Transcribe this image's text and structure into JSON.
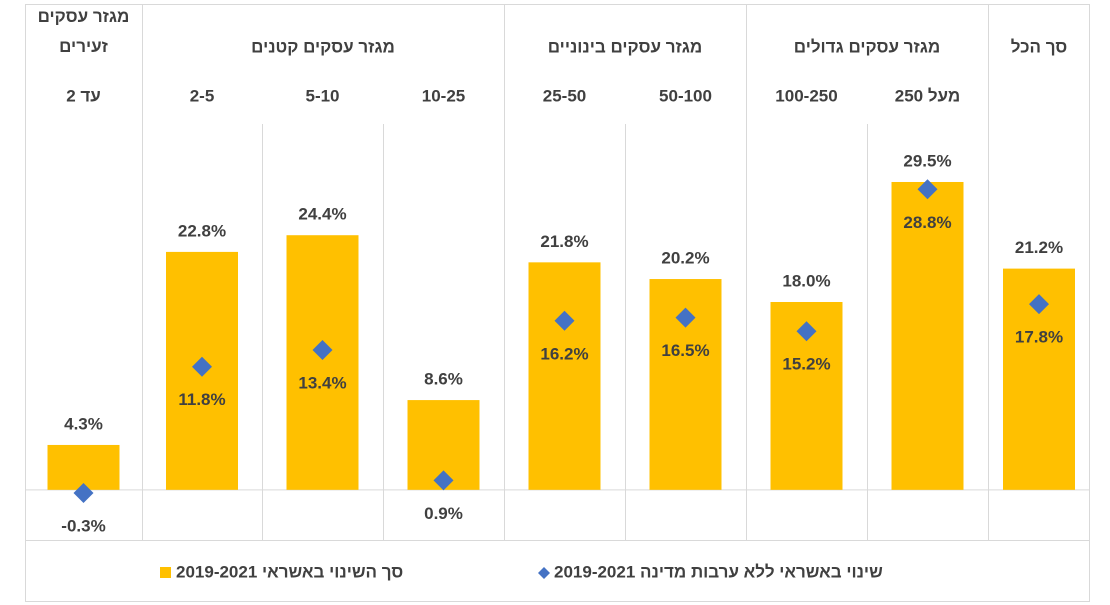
{
  "chart_data": {
    "type": "bar",
    "groups": [
      {
        "label": "מגזר עסקים זעירים",
        "categories": [
          "עד 2"
        ]
      },
      {
        "label": "מגזר עסקים קטנים",
        "categories": [
          "2-5",
          "5-10",
          "10-25"
        ]
      },
      {
        "label": "מגזר עסקים בינוניים",
        "categories": [
          "25-50",
          "50-100"
        ]
      },
      {
        "label": "מגזר עסקים גדולים",
        "categories": [
          "100-250",
          "מעל 250"
        ]
      },
      {
        "label": "סך הכל",
        "categories": [
          null
        ]
      }
    ],
    "series": [
      {
        "name": "סך השינוי באשראי 2019-2021",
        "type": "bar",
        "color": "#ffc000",
        "values": [
          4.3,
          22.8,
          24.4,
          8.6,
          21.8,
          20.2,
          18.0,
          29.5,
          21.2
        ],
        "value_labels": [
          "4.3%",
          "22.8%",
          "24.4%",
          "8.6%",
          "21.8%",
          "20.2%",
          "18.0%",
          "29.5%",
          "21.2%"
        ]
      },
      {
        "name": "שינוי באשראי ללא ערבות מדינה 2019-2021",
        "type": "scatter",
        "color": "#4472c4",
        "values": [
          -0.3,
          11.8,
          13.4,
          0.9,
          16.2,
          16.5,
          15.2,
          28.8,
          17.8
        ],
        "value_labels": [
          "-0.3%",
          "11.8%",
          "13.4%",
          "0.9%",
          "16.2%",
          "16.5%",
          "15.2%",
          "28.8%",
          "17.8%"
        ]
      }
    ],
    "ylim": [
      -5,
      35
    ],
    "legend": "bottom"
  }
}
